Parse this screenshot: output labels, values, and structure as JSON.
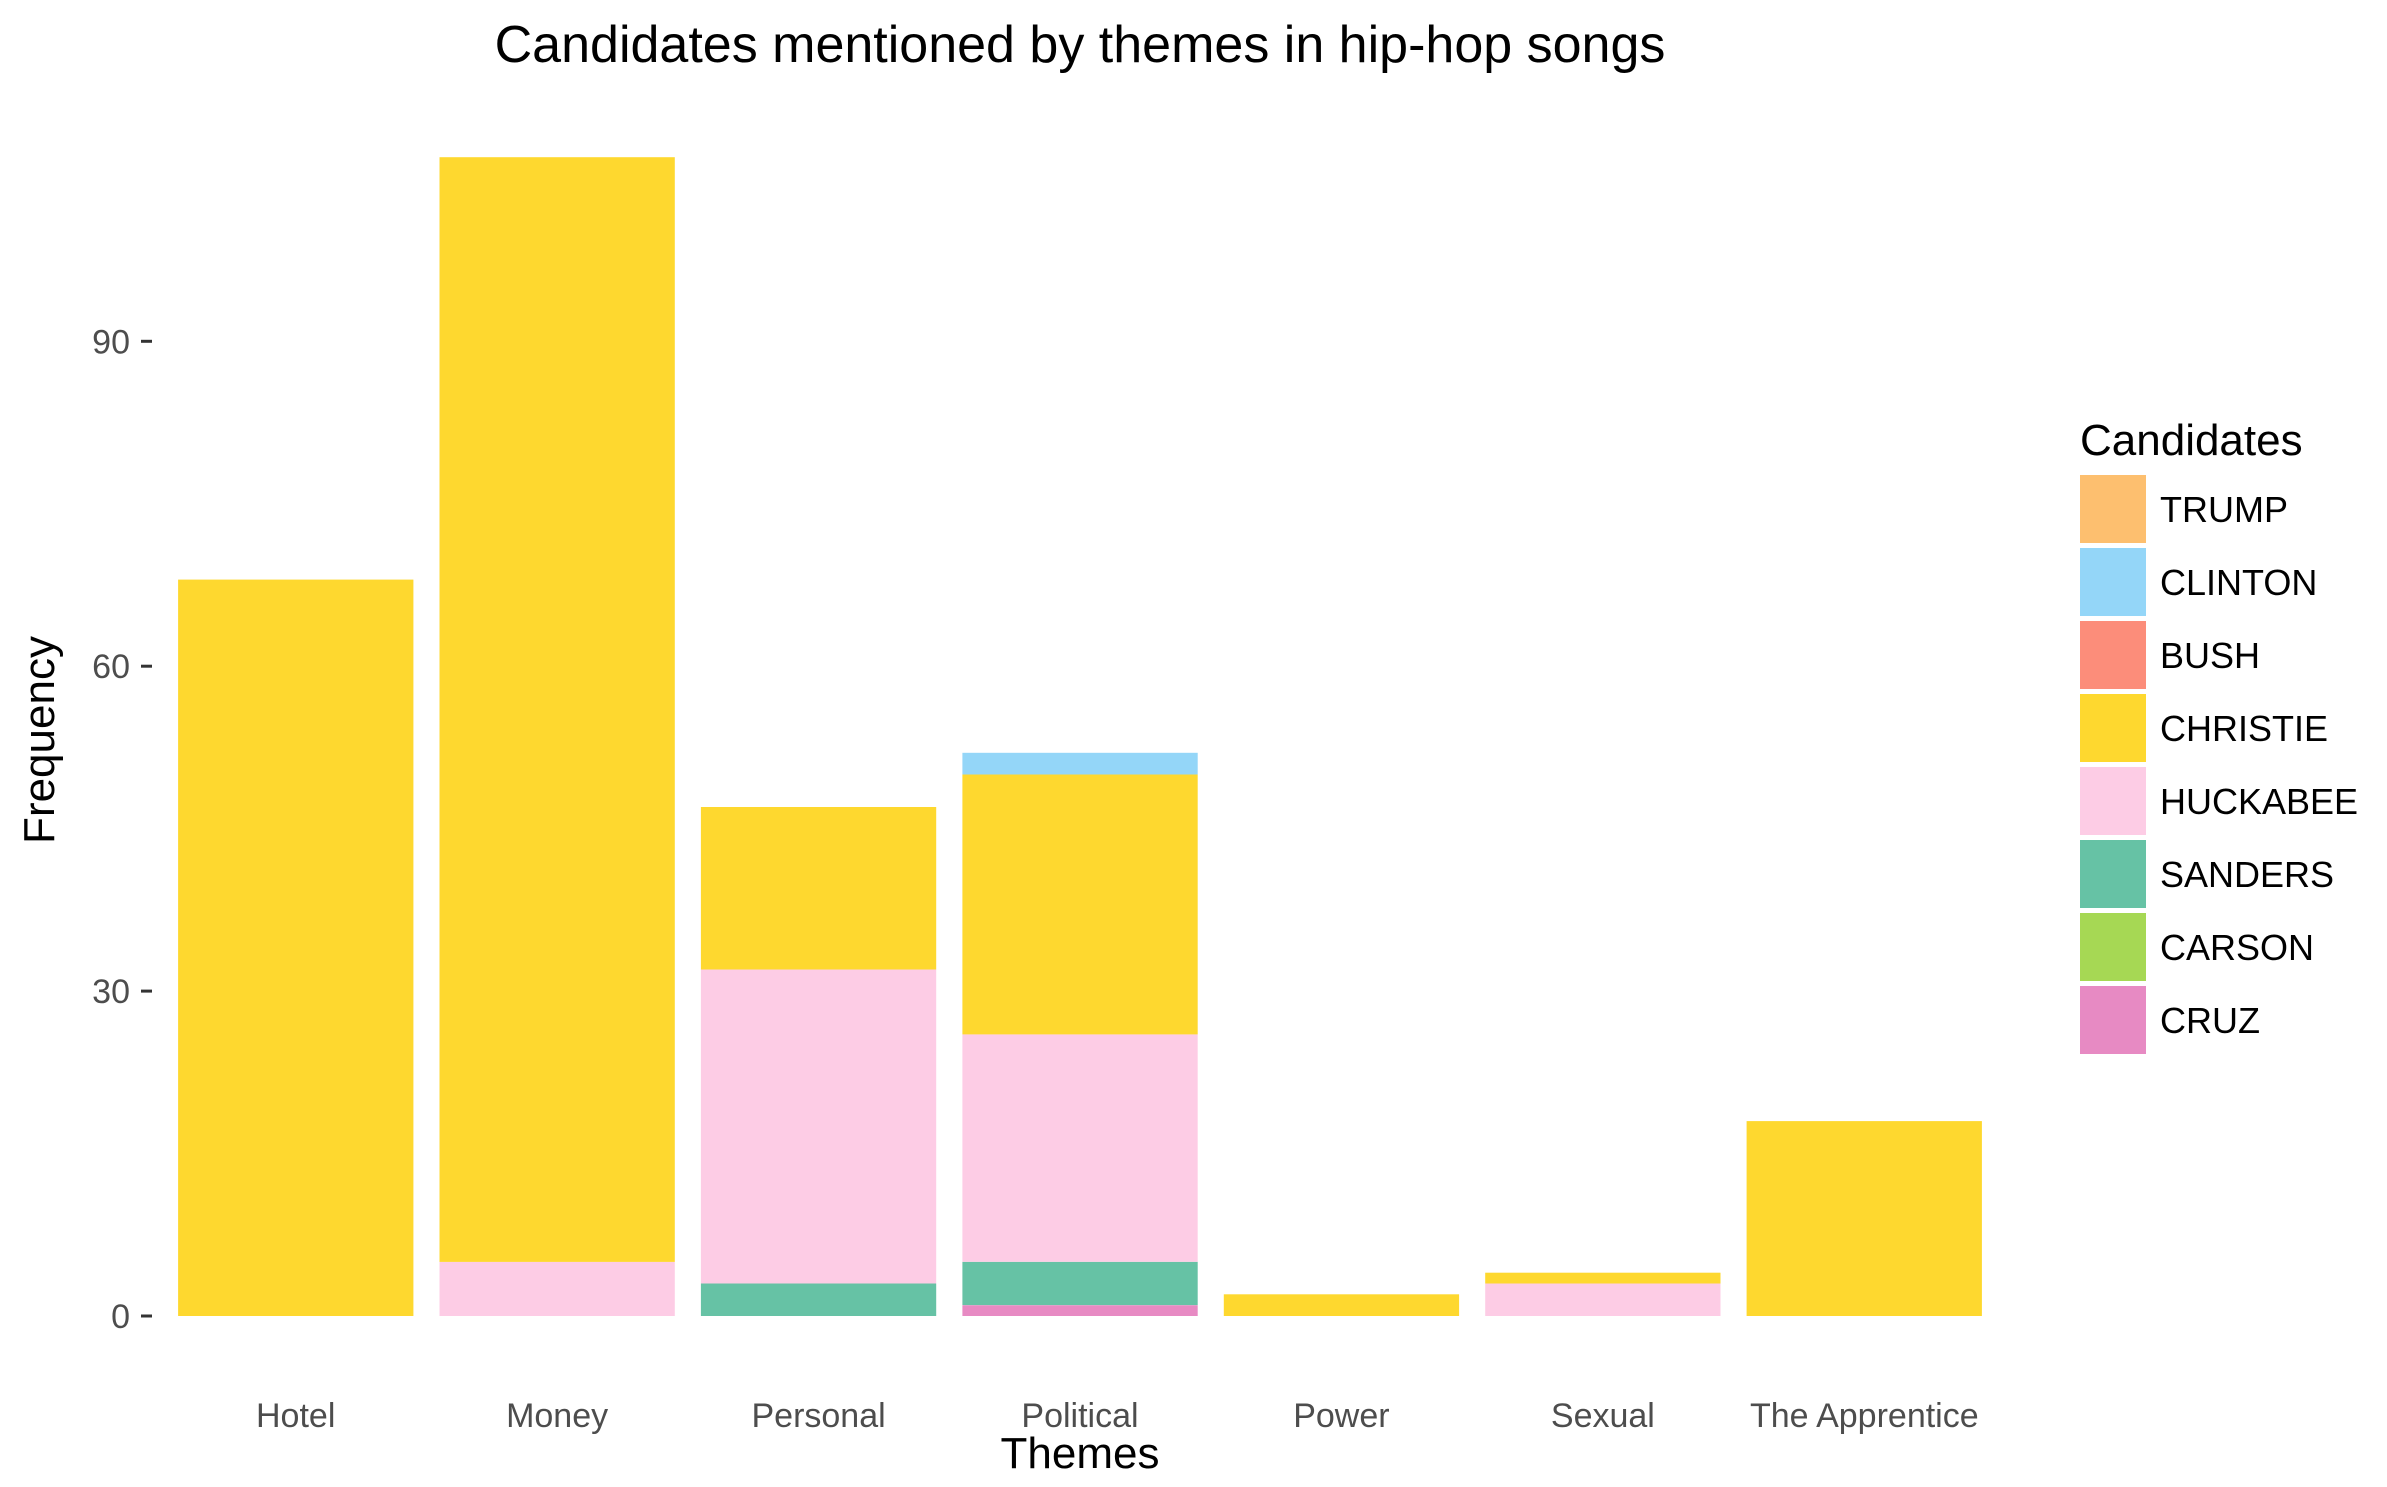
{
  "chart_data": {
    "type": "bar",
    "stacked": true,
    "title": "Candidates mentioned by themes in hip-hop songs",
    "xlabel": "Themes",
    "ylabel": "Frequency",
    "ylim": [
      -4,
      112
    ],
    "yticks": [
      0,
      30,
      60,
      90
    ],
    "grid": false,
    "legend": {
      "title": "Candidates",
      "placement": "right"
    },
    "categories": [
      "Hotel",
      "Money",
      "Personal",
      "Political",
      "Power",
      "Sexual",
      "The Apprentice"
    ],
    "series": [
      {
        "name": "TRUMP",
        "color": "#FDBF6F",
        "values": [
          0,
          0,
          0,
          0,
          0,
          0,
          0
        ]
      },
      {
        "name": "CLINTON",
        "color": "#94D6F8",
        "values": [
          0,
          0,
          0,
          2,
          0,
          0,
          0
        ]
      },
      {
        "name": "BUSH",
        "color": "#FC8D7A",
        "values": [
          0,
          0,
          0,
          0,
          0,
          0,
          0
        ]
      },
      {
        "name": "CHRISTIE",
        "color": "#FED82F",
        "values": [
          68,
          102,
          15,
          24,
          2,
          1,
          18
        ]
      },
      {
        "name": "HUCKABEE",
        "color": "#FDCCE5",
        "values": [
          0,
          5,
          29,
          21,
          0,
          3,
          0
        ]
      },
      {
        "name": "SANDERS",
        "color": "#66C2A5",
        "values": [
          0,
          0,
          3,
          4,
          0,
          0,
          0
        ]
      },
      {
        "name": "CARSON",
        "color": "#A6D854",
        "values": [
          0,
          0,
          0,
          0,
          0,
          0,
          0
        ]
      },
      {
        "name": "CRUZ",
        "color": "#E78AC3",
        "values": [
          0,
          0,
          0,
          1,
          0,
          0,
          0
        ]
      }
    ]
  }
}
